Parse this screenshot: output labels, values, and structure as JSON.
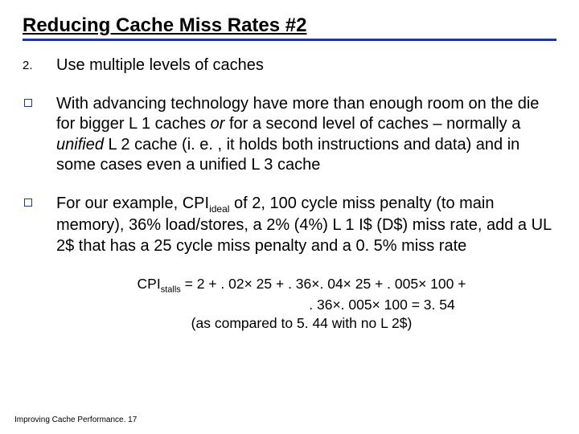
{
  "colors": {
    "rule": "#203890",
    "bullet_border": "#203890"
  },
  "title": "Reducing Cache Miss Rates #2",
  "items": [
    {
      "marker_type": "number",
      "marker": "2.",
      "html": "Use multiple levels of caches"
    },
    {
      "marker_type": "square",
      "html": "With advancing technology have more than enough room on the die for bigger L 1 caches <i>or</i> for a second level of caches – normally a <i>unified</i> L 2 cache (i. e. , it holds both instructions and data) and in some cases even a unified L 3 cache"
    },
    {
      "marker_type": "square",
      "html": "For our example, CPI<sub>ideal</sub> of 2, 100 cycle miss penalty (to main memory), 36% load/stores, a 2% (4%) L 1 I$ (D$) miss rate, add a UL 2$ that has a 25 cycle miss penalty and a 0. 5% miss rate"
    }
  ],
  "equation": {
    "line1": "CPI<sub>stalls</sub>  =  2  +  . 02× 25  +  . 36×. 04× 25  +  . 005× 100  +",
    "line2": ". 36×. 005× 100  =  3. 54",
    "line3": "(as compared to 5. 44 with no L 2$)"
  },
  "footer": "Improving Cache Performance. 17"
}
